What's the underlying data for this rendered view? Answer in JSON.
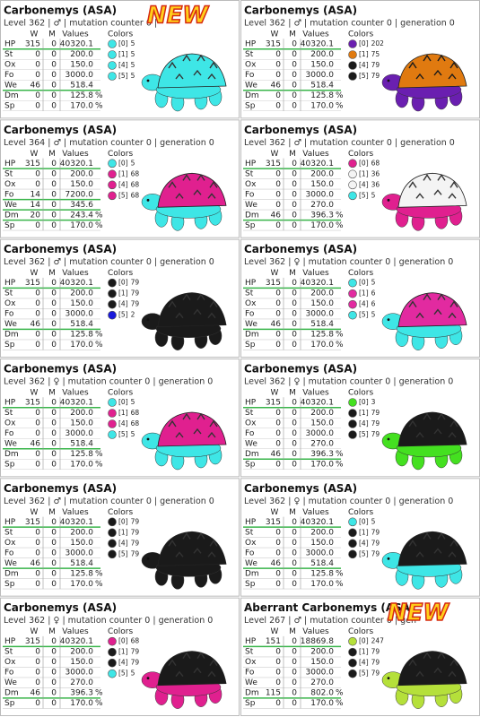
{
  "cards": [
    {
      "title": "Carbonemys (ASA)",
      "level": "Level 362 | ♂ | mutation counter 0 |",
      "badge": "NEW",
      "headers": [
        "W",
        "M",
        "Values",
        "Colors"
      ],
      "rows": [
        {
          "stat": "HP",
          "w": "315",
          "m": "0",
          "value": "40320.1"
        },
        {
          "stat": "St",
          "w": "0",
          "m": "0",
          "value": "200.0"
        },
        {
          "stat": "Ox",
          "w": "0",
          "m": "0",
          "value": "150.0"
        },
        {
          "stat": "Fo",
          "w": "0",
          "m": "0",
          "value": "3000.0"
        },
        {
          "stat": "We",
          "w": "46",
          "m": "0",
          "value": "518.4"
        },
        {
          "stat": "Dm",
          "w": "0",
          "m": "0",
          "value": "125.8",
          "unit": "%"
        },
        {
          "stat": "Sp",
          "w": "0",
          "m": "0",
          "value": "170.0",
          "unit": "%"
        }
      ],
      "colors": [
        {
          "slot": "[0]",
          "id": "5",
          "color": "#3ee6e6"
        },
        {
          "slot": "[1]",
          "id": "5",
          "color": "#3ee6e6"
        },
        {
          "slot": "[4]",
          "id": "5",
          "color": "#3ee6e6"
        },
        {
          "slot": "[5]",
          "id": "5",
          "color": "#3ee6e6"
        }
      ]
    },
    {
      "title": "Carbonemys (ASA)",
      "level": "Level 362 | ♂ | mutation counter 0 | generation 0",
      "headers": [
        "W",
        "M",
        "Values",
        "Colors"
      ],
      "rows": [
        {
          "stat": "HP",
          "w": "315",
          "m": "0",
          "value": "40320.1"
        },
        {
          "stat": "St",
          "w": "0",
          "m": "0",
          "value": "200.0"
        },
        {
          "stat": "Ox",
          "w": "0",
          "m": "0",
          "value": "150.0"
        },
        {
          "stat": "Fo",
          "w": "0",
          "m": "0",
          "value": "3000.0"
        },
        {
          "stat": "We",
          "w": "46",
          "m": "0",
          "value": "518.4"
        },
        {
          "stat": "Dm",
          "w": "0",
          "m": "0",
          "value": "125.8",
          "unit": "%"
        },
        {
          "stat": "Sp",
          "w": "0",
          "m": "0",
          "value": "170.0",
          "unit": "%"
        }
      ],
      "colors": [
        {
          "slot": "[0]",
          "id": "202",
          "color": "#6a1fb0"
        },
        {
          "slot": "[1]",
          "id": "75",
          "color": "#e07a10"
        },
        {
          "slot": "[4]",
          "id": "79",
          "color": "#1a1a1a"
        },
        {
          "slot": "[5]",
          "id": "79",
          "color": "#1a1a1a"
        }
      ]
    },
    {
      "title": "Carbonemys (ASA)",
      "level": "Level 364 | ♂ | mutation counter 0 | generation 0",
      "headers": [
        "W",
        "M",
        "Values",
        "Colors"
      ],
      "rows": [
        {
          "stat": "HP",
          "w": "315",
          "m": "0",
          "value": "40320.1"
        },
        {
          "stat": "St",
          "w": "0",
          "m": "0",
          "value": "200.0"
        },
        {
          "stat": "Ox",
          "w": "0",
          "m": "0",
          "value": "150.0"
        },
        {
          "stat": "Fo",
          "w": "14",
          "m": "0",
          "value": "7200.0"
        },
        {
          "stat": "We",
          "w": "14",
          "m": "0",
          "value": "345.6"
        },
        {
          "stat": "Dm",
          "w": "20",
          "m": "0",
          "value": "243.4",
          "unit": "%"
        },
        {
          "stat": "Sp",
          "w": "0",
          "m": "0",
          "value": "170.0",
          "unit": "%"
        }
      ],
      "colors": [
        {
          "slot": "[0]",
          "id": "5",
          "color": "#3ee6e6"
        },
        {
          "slot": "[1]",
          "id": "68",
          "color": "#e0208f"
        },
        {
          "slot": "[4]",
          "id": "68",
          "color": "#e0208f"
        },
        {
          "slot": "[5]",
          "id": "68",
          "color": "#e0208f"
        }
      ]
    },
    {
      "title": "Carbonemys (ASA)",
      "level": "Level 362 | ♂ | mutation counter 0 | generation 0",
      "headers": [
        "W",
        "M",
        "Values",
        "Colors"
      ],
      "rows": [
        {
          "stat": "HP",
          "w": "315",
          "m": "0",
          "value": "40320.1"
        },
        {
          "stat": "St",
          "w": "0",
          "m": "0",
          "value": "200.0"
        },
        {
          "stat": "Ox",
          "w": "0",
          "m": "0",
          "value": "150.0"
        },
        {
          "stat": "Fo",
          "w": "0",
          "m": "0",
          "value": "3000.0"
        },
        {
          "stat": "We",
          "w": "0",
          "m": "0",
          "value": "270.0"
        },
        {
          "stat": "Dm",
          "w": "46",
          "m": "0",
          "value": "396.3",
          "unit": "%"
        },
        {
          "stat": "Sp",
          "w": "0",
          "m": "0",
          "value": "170.0",
          "unit": "%"
        }
      ],
      "colors": [
        {
          "slot": "[0]",
          "id": "68",
          "color": "#e0208f"
        },
        {
          "slot": "[1]",
          "id": "36",
          "color": "#f4f4f4"
        },
        {
          "slot": "[4]",
          "id": "36",
          "color": "#f4f4f4"
        },
        {
          "slot": "[5]",
          "id": "5",
          "color": "#3ee6e6"
        }
      ]
    },
    {
      "title": "Carbonemys (ASA)",
      "level": "Level 362 | ♂ | mutation counter 0 | generation 0",
      "headers": [
        "W",
        "M",
        "Values",
        "Colors"
      ],
      "rows": [
        {
          "stat": "HP",
          "w": "315",
          "m": "0",
          "value": "40320.1"
        },
        {
          "stat": "St",
          "w": "0",
          "m": "0",
          "value": "200.0"
        },
        {
          "stat": "Ox",
          "w": "0",
          "m": "0",
          "value": "150.0"
        },
        {
          "stat": "Fo",
          "w": "0",
          "m": "0",
          "value": "3000.0"
        },
        {
          "stat": "We",
          "w": "46",
          "m": "0",
          "value": "518.4"
        },
        {
          "stat": "Dm",
          "w": "0",
          "m": "0",
          "value": "125.8",
          "unit": "%"
        },
        {
          "stat": "Sp",
          "w": "0",
          "m": "0",
          "value": "170.0",
          "unit": "%"
        }
      ],
      "colors": [
        {
          "slot": "[0]",
          "id": "79",
          "color": "#1a1a1a"
        },
        {
          "slot": "[1]",
          "id": "79",
          "color": "#1a1a1a"
        },
        {
          "slot": "[4]",
          "id": "79",
          "color": "#1a1a1a"
        },
        {
          "slot": "[5]",
          "id": "2",
          "color": "#1a1adb"
        }
      ]
    },
    {
      "title": "Carbonemys (ASA)",
      "level": "Level 362 | ♀ | mutation counter 0 | generation 0",
      "headers": [
        "W",
        "M",
        "Values",
        "Colors"
      ],
      "rows": [
        {
          "stat": "HP",
          "w": "315",
          "m": "0",
          "value": "40320.1"
        },
        {
          "stat": "St",
          "w": "0",
          "m": "0",
          "value": "200.0"
        },
        {
          "stat": "Ox",
          "w": "0",
          "m": "0",
          "value": "150.0"
        },
        {
          "stat": "Fo",
          "w": "0",
          "m": "0",
          "value": "3000.0"
        },
        {
          "stat": "We",
          "w": "46",
          "m": "0",
          "value": "518.4"
        },
        {
          "stat": "Dm",
          "w": "0",
          "m": "0",
          "value": "125.8",
          "unit": "%"
        },
        {
          "stat": "Sp",
          "w": "0",
          "m": "0",
          "value": "170.0",
          "unit": "%"
        }
      ],
      "colors": [
        {
          "slot": "[0]",
          "id": "5",
          "color": "#3ee6e6"
        },
        {
          "slot": "[1]",
          "id": "6",
          "color": "#e22aa0"
        },
        {
          "slot": "[4]",
          "id": "6",
          "color": "#e22aa0"
        },
        {
          "slot": "[5]",
          "id": "5",
          "color": "#3ee6e6"
        }
      ]
    },
    {
      "title": "Carbonemys (ASA)",
      "level": "Level 362 | ♀ | mutation counter 0 | generation 0",
      "headers": [
        "W",
        "M",
        "Values",
        "Colors"
      ],
      "rows": [
        {
          "stat": "HP",
          "w": "315",
          "m": "0",
          "value": "40320.1"
        },
        {
          "stat": "St",
          "w": "0",
          "m": "0",
          "value": "200.0"
        },
        {
          "stat": "Ox",
          "w": "0",
          "m": "0",
          "value": "150.0"
        },
        {
          "stat": "Fo",
          "w": "0",
          "m": "0",
          "value": "3000.0"
        },
        {
          "stat": "We",
          "w": "46",
          "m": "0",
          "value": "518.4"
        },
        {
          "stat": "Dm",
          "w": "0",
          "m": "0",
          "value": "125.8",
          "unit": "%"
        },
        {
          "stat": "Sp",
          "w": "0",
          "m": "0",
          "value": "170.0",
          "unit": "%"
        }
      ],
      "colors": [
        {
          "slot": "[0]",
          "id": "5",
          "color": "#3ee6e6"
        },
        {
          "slot": "[1]",
          "id": "68",
          "color": "#e0208f"
        },
        {
          "slot": "[4]",
          "id": "68",
          "color": "#e0208f"
        },
        {
          "slot": "[5]",
          "id": "5",
          "color": "#3ee6e6"
        }
      ]
    },
    {
      "title": "Carbonemys (ASA)",
      "level": "Level 362 | ♀ | mutation counter 0 | generation 0",
      "headers": [
        "W",
        "M",
        "Values",
        "Colors"
      ],
      "rows": [
        {
          "stat": "HP",
          "w": "315",
          "m": "0",
          "value": "40320.1"
        },
        {
          "stat": "St",
          "w": "0",
          "m": "0",
          "value": "200.0"
        },
        {
          "stat": "Ox",
          "w": "0",
          "m": "0",
          "value": "150.0"
        },
        {
          "stat": "Fo",
          "w": "0",
          "m": "0",
          "value": "3000.0"
        },
        {
          "stat": "We",
          "w": "0",
          "m": "0",
          "value": "270.0"
        },
        {
          "stat": "Dm",
          "w": "46",
          "m": "0",
          "value": "396.3",
          "unit": "%"
        },
        {
          "stat": "Sp",
          "w": "0",
          "m": "0",
          "value": "170.0",
          "unit": "%"
        }
      ],
      "colors": [
        {
          "slot": "[0]",
          "id": "3",
          "color": "#44e020"
        },
        {
          "slot": "[1]",
          "id": "79",
          "color": "#1a1a1a"
        },
        {
          "slot": "[4]",
          "id": "79",
          "color": "#1a1a1a"
        },
        {
          "slot": "[5]",
          "id": "79",
          "color": "#1a1a1a"
        }
      ]
    },
    {
      "title": "Carbonemys (ASA)",
      "level": "Level 362 | ♂ | mutation counter 0 | generation 0",
      "headers": [
        "W",
        "M",
        "Values",
        "Colors"
      ],
      "rows": [
        {
          "stat": "HP",
          "w": "315",
          "m": "0",
          "value": "40320.1"
        },
        {
          "stat": "St",
          "w": "0",
          "m": "0",
          "value": "200.0"
        },
        {
          "stat": "Ox",
          "w": "0",
          "m": "0",
          "value": "150.0"
        },
        {
          "stat": "Fo",
          "w": "0",
          "m": "0",
          "value": "3000.0"
        },
        {
          "stat": "We",
          "w": "46",
          "m": "0",
          "value": "518.4"
        },
        {
          "stat": "Dm",
          "w": "0",
          "m": "0",
          "value": "125.8",
          "unit": "%"
        },
        {
          "stat": "Sp",
          "w": "0",
          "m": "0",
          "value": "170.0",
          "unit": "%"
        }
      ],
      "colors": [
        {
          "slot": "[0]",
          "id": "79",
          "color": "#1a1a1a"
        },
        {
          "slot": "[1]",
          "id": "79",
          "color": "#1a1a1a"
        },
        {
          "slot": "[4]",
          "id": "79",
          "color": "#1a1a1a"
        },
        {
          "slot": "[5]",
          "id": "79",
          "color": "#1a1a1a"
        }
      ]
    },
    {
      "title": "Carbonemys (ASA)",
      "level": "Level 362 | ♀ | mutation counter 0 | generation 0",
      "headers": [
        "W",
        "M",
        "Values",
        "Colors"
      ],
      "rows": [
        {
          "stat": "HP",
          "w": "315",
          "m": "0",
          "value": "40320.1"
        },
        {
          "stat": "St",
          "w": "0",
          "m": "0",
          "value": "200.0"
        },
        {
          "stat": "Ox",
          "w": "0",
          "m": "0",
          "value": "150.0"
        },
        {
          "stat": "Fo",
          "w": "0",
          "m": "0",
          "value": "3000.0"
        },
        {
          "stat": "We",
          "w": "46",
          "m": "0",
          "value": "518.4"
        },
        {
          "stat": "Dm",
          "w": "0",
          "m": "0",
          "value": "125.8",
          "unit": "%"
        },
        {
          "stat": "Sp",
          "w": "0",
          "m": "0",
          "value": "170.0",
          "unit": "%"
        }
      ],
      "colors": [
        {
          "slot": "[0]",
          "id": "5",
          "color": "#3ee6e6"
        },
        {
          "slot": "[1]",
          "id": "79",
          "color": "#1a1a1a"
        },
        {
          "slot": "[4]",
          "id": "79",
          "color": "#1a1a1a"
        },
        {
          "slot": "[5]",
          "id": "79",
          "color": "#1a1a1a"
        }
      ]
    },
    {
      "title": "Carbonemys (ASA)",
      "level": "Level 362 | ♀ | mutation counter 0 | generation 0",
      "headers": [
        "W",
        "M",
        "Values",
        "Colors"
      ],
      "rows": [
        {
          "stat": "HP",
          "w": "315",
          "m": "0",
          "value": "40320.1"
        },
        {
          "stat": "St",
          "w": "0",
          "m": "0",
          "value": "200.0"
        },
        {
          "stat": "Ox",
          "w": "0",
          "m": "0",
          "value": "150.0"
        },
        {
          "stat": "Fo",
          "w": "0",
          "m": "0",
          "value": "3000.0"
        },
        {
          "stat": "We",
          "w": "0",
          "m": "0",
          "value": "270.0"
        },
        {
          "stat": "Dm",
          "w": "46",
          "m": "0",
          "value": "396.3",
          "unit": "%"
        },
        {
          "stat": "Sp",
          "w": "0",
          "m": "0",
          "value": "170.0",
          "unit": "%"
        }
      ],
      "colors": [
        {
          "slot": "[0]",
          "id": "68",
          "color": "#e0208f"
        },
        {
          "slot": "[1]",
          "id": "79",
          "color": "#1a1a1a"
        },
        {
          "slot": "[4]",
          "id": "79",
          "color": "#1a1a1a"
        },
        {
          "slot": "[5]",
          "id": "5",
          "color": "#3ee6e6"
        }
      ]
    },
    {
      "title": "Aberrant Carbonemys (ASA)",
      "level": "Level 267 | ♂ | mutation counter 0 | gen",
      "badge": "NEW",
      "headers": [
        "W",
        "M",
        "Values",
        "Colors"
      ],
      "rows": [
        {
          "stat": "HP",
          "w": "151",
          "m": "0",
          "value": "18869.8"
        },
        {
          "stat": "St",
          "w": "0",
          "m": "0",
          "value": "200.0"
        },
        {
          "stat": "Ox",
          "w": "0",
          "m": "0",
          "value": "150.0"
        },
        {
          "stat": "Fo",
          "w": "0",
          "m": "0",
          "value": "3000.0"
        },
        {
          "stat": "We",
          "w": "0",
          "m": "0",
          "value": "270.0"
        },
        {
          "stat": "Dm",
          "w": "115",
          "m": "0",
          "value": "802.0",
          "unit": "%"
        },
        {
          "stat": "Sp",
          "w": "0",
          "m": "0",
          "value": "170.0",
          "unit": "%"
        }
      ],
      "colors": [
        {
          "slot": "[0]",
          "id": "247",
          "color": "#b5e03a"
        },
        {
          "slot": "[1]",
          "id": "79",
          "color": "#1a1a1a"
        },
        {
          "slot": "[4]",
          "id": "79",
          "color": "#1a1a1a"
        },
        {
          "slot": "[5]",
          "id": "79",
          "color": "#1a1a1a"
        }
      ]
    }
  ]
}
